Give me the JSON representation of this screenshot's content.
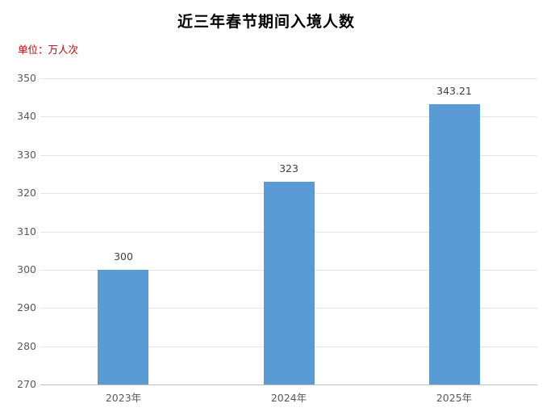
{
  "chart": {
    "title": "近三年春节期间入境人数",
    "unit_label": "单位：万人次"
  },
  "colors": {
    "bar": "#5B9BD5",
    "title": "#000000",
    "unit_label": "#C00000",
    "gridline": "#E4E4E4",
    "axis_line": "#BFBFBF",
    "tick_label": "#595959",
    "data_label": "#3F3F3F",
    "background": "#FFFFFF"
  },
  "chart_data": {
    "type": "bar",
    "title": "近三年春节期间入境人数",
    "xlabel": "",
    "ylabel": "单位：万人次",
    "categories": [
      "2023年",
      "2024年",
      "2025年"
    ],
    "values": [
      300,
      323,
      343.21
    ],
    "data_labels": [
      "300",
      "323",
      "343.21"
    ],
    "ylim": [
      270,
      350
    ],
    "yticks": [
      270,
      280,
      290,
      300,
      310,
      320,
      330,
      340,
      350
    ],
    "grid": true,
    "legend": "none"
  }
}
